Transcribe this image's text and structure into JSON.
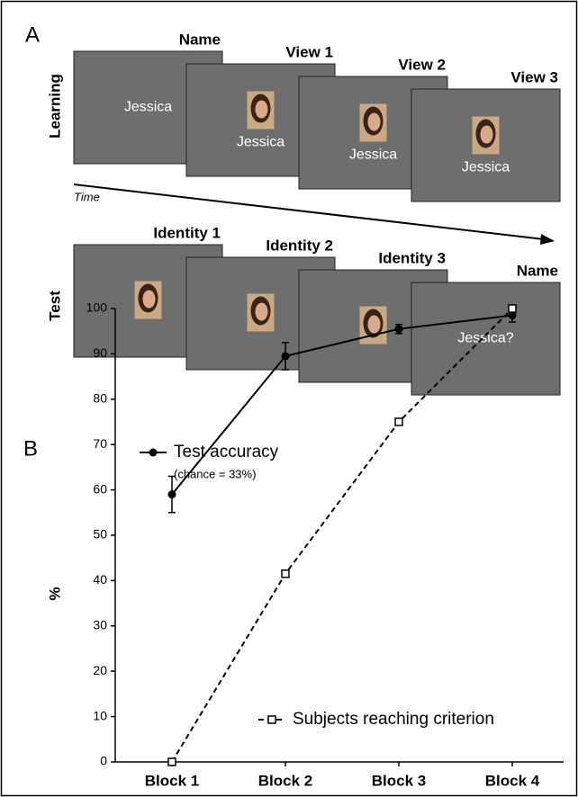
{
  "panel_a": {
    "label": "A",
    "time_label": "Time",
    "learning": {
      "label": "Learning",
      "screens": [
        {
          "title": "Name",
          "text": "Jessica"
        },
        {
          "title": "View 1",
          "text": "Jessica"
        },
        {
          "title": "View 2",
          "text": "Jessica"
        },
        {
          "title": "View 3",
          "text": "Jessica"
        }
      ]
    },
    "test": {
      "label": "Test",
      "screens": [
        {
          "title": "Identity 1"
        },
        {
          "title": "Identity 2"
        },
        {
          "title": "Identity 3"
        },
        {
          "title": "Name",
          "text": "Jessica?"
        }
      ]
    }
  },
  "chart_data": {
    "type": "line",
    "panel_label": "B",
    "y_label": "%",
    "annotation": "(chance = 33%)",
    "categories": [
      "Block 1",
      "Block 2",
      "Block 3",
      "Block 4"
    ],
    "series": [
      {
        "name": "Test accuracy",
        "color": "#000000",
        "marker": "filled-circle",
        "dashed": false,
        "values": [
          59,
          89.5,
          95.5,
          98.5
        ],
        "errors": [
          4,
          3,
          1,
          1.5
        ]
      },
      {
        "name": "Subjects reaching criterion",
        "color": "#000000",
        "marker": "open-square",
        "dashed": true,
        "values": [
          0,
          41.5,
          75,
          100
        ]
      }
    ],
    "ylim": [
      0,
      100
    ],
    "yticks": [
      0,
      10,
      20,
      30,
      40,
      50,
      60,
      70,
      80,
      90,
      100
    ],
    "grid": false
  }
}
